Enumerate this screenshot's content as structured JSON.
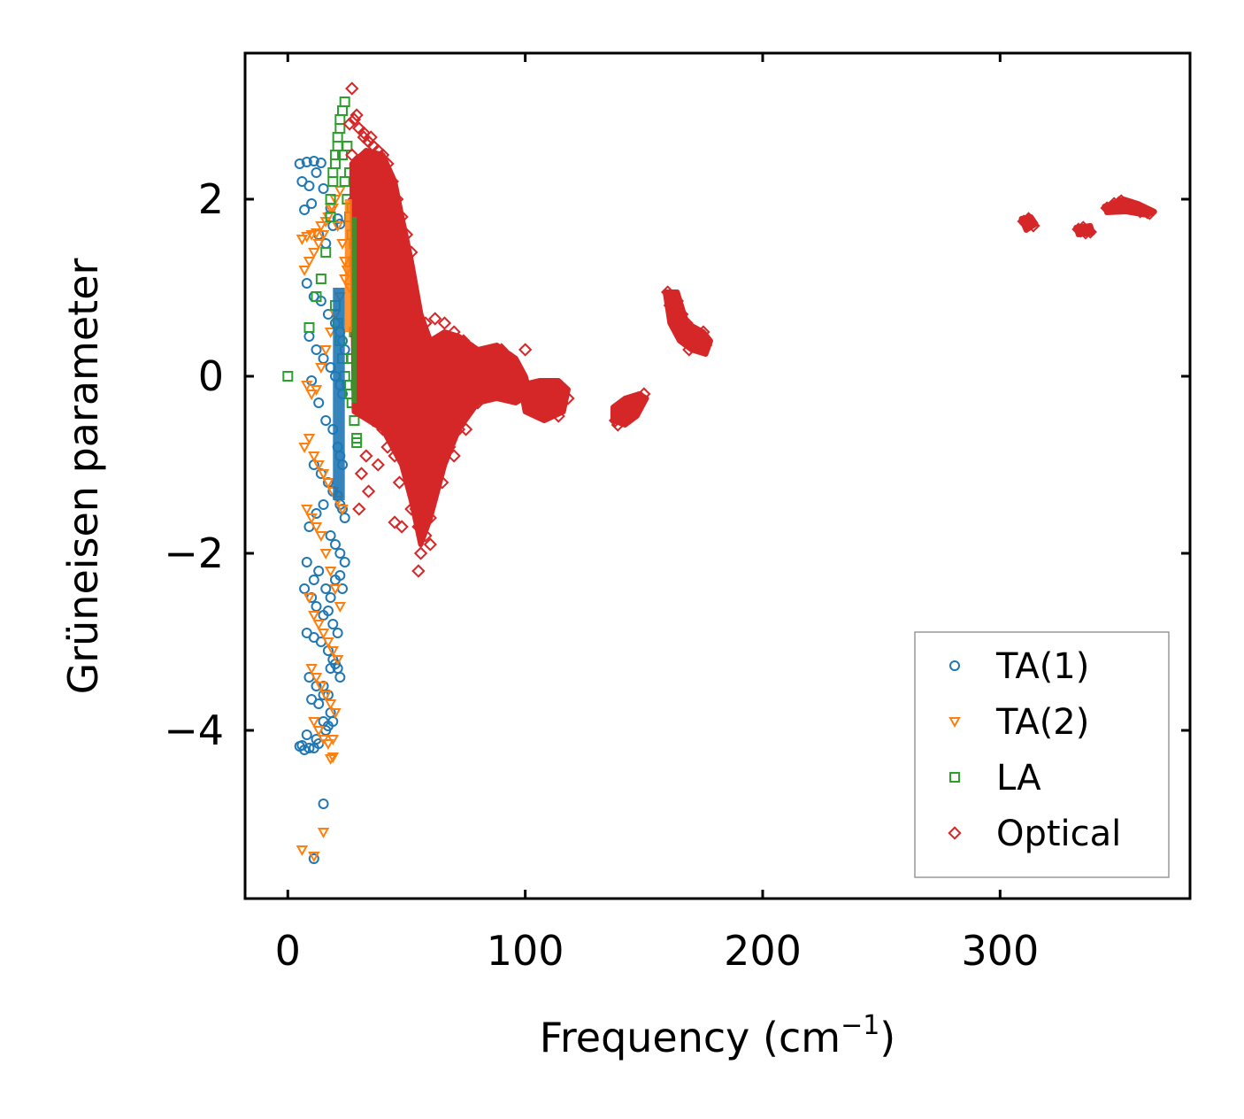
{
  "chart_data": {
    "type": "scatter",
    "title": "",
    "xlabel": "Frequency (cm",
    "xlabel_sup": "−1",
    "xlabel_end": ")",
    "ylabel": "Grüneisen parameter",
    "xlim": [
      -18,
      380
    ],
    "ylim": [
      -5.9,
      3.65
    ],
    "x_ticks": [
      0,
      100,
      200,
      300
    ],
    "x_tick_labels": [
      "0",
      "100",
      "200",
      "300"
    ],
    "y_ticks": [
      -4,
      -2,
      0,
      2
    ],
    "y_tick_labels": [
      "−4",
      "−2",
      "0",
      "2"
    ],
    "grid": false,
    "legend_position": "bottom-right",
    "series": [
      {
        "name": "TA(1)",
        "marker": "circle",
        "color": "#1f77b4",
        "x": [
          5,
          8,
          11,
          14,
          6,
          9,
          12,
          15,
          18,
          7,
          10,
          13,
          16,
          19,
          21,
          22,
          8,
          11,
          14,
          17,
          20,
          22,
          23,
          9,
          12,
          15,
          18,
          20,
          22,
          23,
          24,
          10,
          13,
          16,
          19,
          21,
          22,
          23,
          11,
          14,
          17,
          19,
          21,
          22,
          23,
          24,
          9,
          12,
          15,
          18,
          20,
          22,
          24,
          8,
          11,
          13,
          16,
          18,
          20,
          22,
          23,
          7,
          10,
          12,
          15,
          17,
          19,
          21,
          8,
          11,
          14,
          17,
          19,
          21,
          22,
          9,
          12,
          15,
          18,
          20,
          10,
          13,
          15,
          17,
          19,
          8,
          11,
          13,
          16,
          18,
          6,
          9,
          12,
          15,
          17,
          5,
          7,
          15,
          11
        ],
        "y": [
          2.4,
          2.42,
          2.43,
          2.41,
          2.2,
          2.15,
          2.3,
          2.12,
          1.9,
          1.88,
          1.95,
          1.6,
          1.5,
          1.7,
          1.78,
          1.72,
          1.05,
          0.9,
          0.85,
          0.7,
          0.6,
          0.5,
          0.4,
          0.45,
          0.3,
          0.2,
          0.1,
          0.0,
          -0.1,
          -0.2,
          0.3,
          -0.05,
          -0.3,
          -0.5,
          -0.6,
          -0.8,
          -0.9,
          -1.0,
          -1.0,
          -1.1,
          -1.2,
          -1.3,
          -1.35,
          -1.45,
          -1.5,
          -1.6,
          -1.7,
          -1.55,
          -1.45,
          -1.8,
          -1.9,
          -2.0,
          -2.1,
          -2.1,
          -2.3,
          -2.2,
          -2.4,
          -2.5,
          -2.3,
          -2.25,
          -2.4,
          -2.4,
          -2.5,
          -2.6,
          -2.7,
          -2.65,
          -2.8,
          -2.9,
          -2.9,
          -2.95,
          -3.0,
          -3.1,
          -3.2,
          -3.3,
          -3.4,
          -3.4,
          -3.5,
          -3.6,
          -3.3,
          -3.25,
          -3.65,
          -3.7,
          -3.5,
          -3.6,
          -3.9,
          -4.05,
          -4.2,
          -4.15,
          -4.0,
          -3.8,
          -4.17,
          -4.2,
          -4.1,
          -3.9,
          -3.95,
          -4.18,
          -4.22,
          -4.83,
          -5.45
        ]
      },
      {
        "name": "TA(2)",
        "marker": "triangle-down",
        "color": "#ff7f0e",
        "x": [
          6,
          8,
          10,
          12,
          14,
          16,
          18,
          20,
          22,
          7,
          9,
          11,
          13,
          15,
          17,
          19,
          21,
          23,
          24,
          8,
          10,
          12,
          14,
          16,
          18,
          20,
          22,
          24,
          25,
          26,
          7,
          9,
          11,
          13,
          15,
          17,
          19,
          21,
          23,
          8,
          10,
          12,
          14,
          16,
          18,
          20,
          22,
          9,
          11,
          13,
          15,
          17,
          19,
          21,
          10,
          12,
          14,
          16,
          18,
          20,
          11,
          13,
          15,
          17,
          19,
          6,
          15,
          18,
          19,
          11
        ],
        "y": [
          1.55,
          1.58,
          1.6,
          1.62,
          1.7,
          1.75,
          1.9,
          2.0,
          2.1,
          1.2,
          1.3,
          1.4,
          1.5,
          1.6,
          1.8,
          1.9,
          1.7,
          1.5,
          1.3,
          -0.1,
          -0.2,
          -0.15,
          0.1,
          0.3,
          0.5,
          0.7,
          0.9,
          1.1,
          1.2,
          1.0,
          -0.8,
          -0.7,
          -0.9,
          -1.0,
          -1.1,
          -1.2,
          -1.3,
          -1.4,
          -1.5,
          -1.5,
          -1.6,
          -1.7,
          -1.8,
          -2.0,
          -2.2,
          -2.4,
          -2.6,
          -2.5,
          -2.7,
          -2.8,
          -2.9,
          -3.0,
          -3.1,
          -3.2,
          -3.3,
          -3.4,
          -3.5,
          -3.6,
          -3.7,
          -3.8,
          -3.9,
          -4.0,
          -4.1,
          -4.15,
          -4.3,
          -5.35,
          -5.15,
          -4.32,
          -4.1,
          -5.42
        ]
      },
      {
        "name": "LA",
        "marker": "square",
        "color": "#2ca02c",
        "x": [
          0,
          9,
          12,
          14,
          16,
          18,
          19,
          20,
          21,
          22,
          23,
          24,
          25,
          26,
          27,
          28,
          29,
          20,
          21,
          22,
          23,
          24,
          25,
          26,
          27,
          28,
          29,
          18,
          19,
          20,
          21,
          22,
          23,
          24,
          25,
          26,
          27,
          28,
          29,
          30,
          28,
          27,
          26,
          29
        ],
        "y": [
          0.0,
          0.55,
          0.9,
          1.1,
          1.4,
          1.8,
          2.3,
          2.5,
          2.7,
          2.9,
          3.0,
          3.1,
          2.6,
          2.3,
          1.9,
          1.5,
          1.1,
          0.8,
          0.6,
          0.4,
          0.2,
          0.0,
          -0.1,
          -0.2,
          -0.3,
          -0.5,
          -0.7,
          2.0,
          2.2,
          2.4,
          2.6,
          2.8,
          2.5,
          2.2,
          2.0,
          1.8,
          1.6,
          1.3,
          1.0,
          0.8,
          0.5,
          0.2,
          -0.1,
          -0.75
        ]
      },
      {
        "name": "Optical",
        "marker": "diamond",
        "color": "#d62728",
        "x": [
          27,
          28,
          30,
          32,
          34,
          36,
          38,
          40,
          42,
          44,
          46,
          48,
          50,
          52,
          27,
          29,
          31,
          33,
          35,
          37,
          39,
          41,
          43,
          45,
          47,
          49,
          28,
          30,
          32,
          34,
          36,
          38,
          40,
          42,
          44,
          46,
          48,
          50,
          52,
          54,
          29,
          31,
          33,
          35,
          37,
          39,
          41,
          43,
          45,
          47,
          30,
          34,
          38,
          42,
          46,
          50,
          54,
          58,
          62,
          66,
          70,
          74,
          78,
          82,
          86,
          90,
          94,
          36,
          40,
          44,
          48,
          52,
          56,
          60,
          64,
          68,
          72,
          50,
          54,
          58,
          62,
          66,
          70,
          74,
          78,
          82,
          86,
          90,
          52,
          55,
          58,
          60,
          55,
          60,
          65,
          70,
          75,
          80,
          85,
          90,
          95,
          100,
          103,
          106,
          109,
          112,
          115,
          118,
          98,
          102,
          106,
          110,
          114,
          138,
          140,
          142,
          144,
          146,
          148,
          150,
          139,
          141,
          143,
          145,
          147,
          149,
          160,
          162,
          164,
          166,
          168,
          170,
          172,
          174,
          176,
          161,
          163,
          165,
          167,
          169,
          171,
          173,
          175,
          310,
          311,
          312,
          313,
          314,
          333,
          334,
          335,
          336,
          337,
          338,
          345,
          348,
          351,
          354,
          357,
          360,
          363,
          347,
          350,
          353,
          356,
          359,
          362,
          26,
          29,
          32,
          35,
          30,
          34,
          38,
          42,
          33,
          31,
          54,
          45,
          48,
          56
        ],
        "y": [
          3.25,
          2.9,
          2.8,
          2.7,
          2.65,
          2.6,
          2.55,
          2.5,
          2.4,
          2.2,
          2.0,
          1.8,
          1.6,
          1.4,
          2.5,
          2.4,
          2.3,
          2.2,
          2.1,
          2.0,
          1.9,
          1.8,
          1.6,
          1.4,
          1.2,
          1.0,
          2.0,
          1.8,
          1.6,
          1.4,
          1.2,
          1.0,
          0.8,
          0.6,
          0.4,
          0.2,
          0.0,
          -0.2,
          -0.4,
          -0.6,
          1.5,
          1.2,
          0.9,
          0.6,
          0.3,
          0.0,
          -0.3,
          -0.6,
          -0.9,
          -1.2,
          0.5,
          0.3,
          0.1,
          0.0,
          -0.2,
          -0.3,
          -0.4,
          -0.5,
          -0.4,
          -0.3,
          -0.2,
          -0.1,
          0.0,
          0.1,
          0.2,
          0.3,
          0.2,
          -0.5,
          -0.6,
          -0.7,
          -0.8,
          -1.0,
          -1.2,
          -1.3,
          -1.0,
          -0.8,
          -0.6,
          0.4,
          0.5,
          0.6,
          0.65,
          0.6,
          0.5,
          0.4,
          0.3,
          0.2,
          0.1,
          0.0,
          -1.5,
          -1.7,
          -1.8,
          -1.9,
          -2.2,
          -1.6,
          -1.2,
          -0.9,
          -0.6,
          -0.3,
          -0.1,
          0.0,
          0.1,
          0.3,
          -0.2,
          -0.3,
          -0.35,
          -0.4,
          -0.3,
          -0.25,
          -0.15,
          -0.2,
          -0.3,
          -0.4,
          -0.45,
          -0.5,
          -0.45,
          -0.4,
          -0.35,
          -0.3,
          -0.25,
          -0.2,
          -0.55,
          -0.5,
          -0.45,
          -0.4,
          -0.3,
          -0.25,
          0.95,
          0.9,
          0.85,
          0.7,
          0.6,
          0.5,
          0.45,
          0.4,
          0.35,
          0.8,
          0.75,
          0.6,
          0.4,
          0.3,
          0.35,
          0.45,
          0.5,
          1.75,
          1.72,
          1.78,
          1.74,
          1.7,
          1.66,
          1.64,
          1.68,
          1.62,
          1.65,
          1.63,
          1.9,
          1.95,
          1.98,
          1.93,
          1.9,
          1.88,
          1.84,
          1.92,
          1.96,
          1.94,
          1.9,
          1.86,
          1.85,
          2.85,
          2.95,
          2.75,
          2.7,
          -1.5,
          -1.3,
          -1.0,
          -0.8,
          -0.9,
          -1.1,
          -1.5,
          -1.65,
          -1.7,
          -2.0
        ]
      }
    ]
  }
}
